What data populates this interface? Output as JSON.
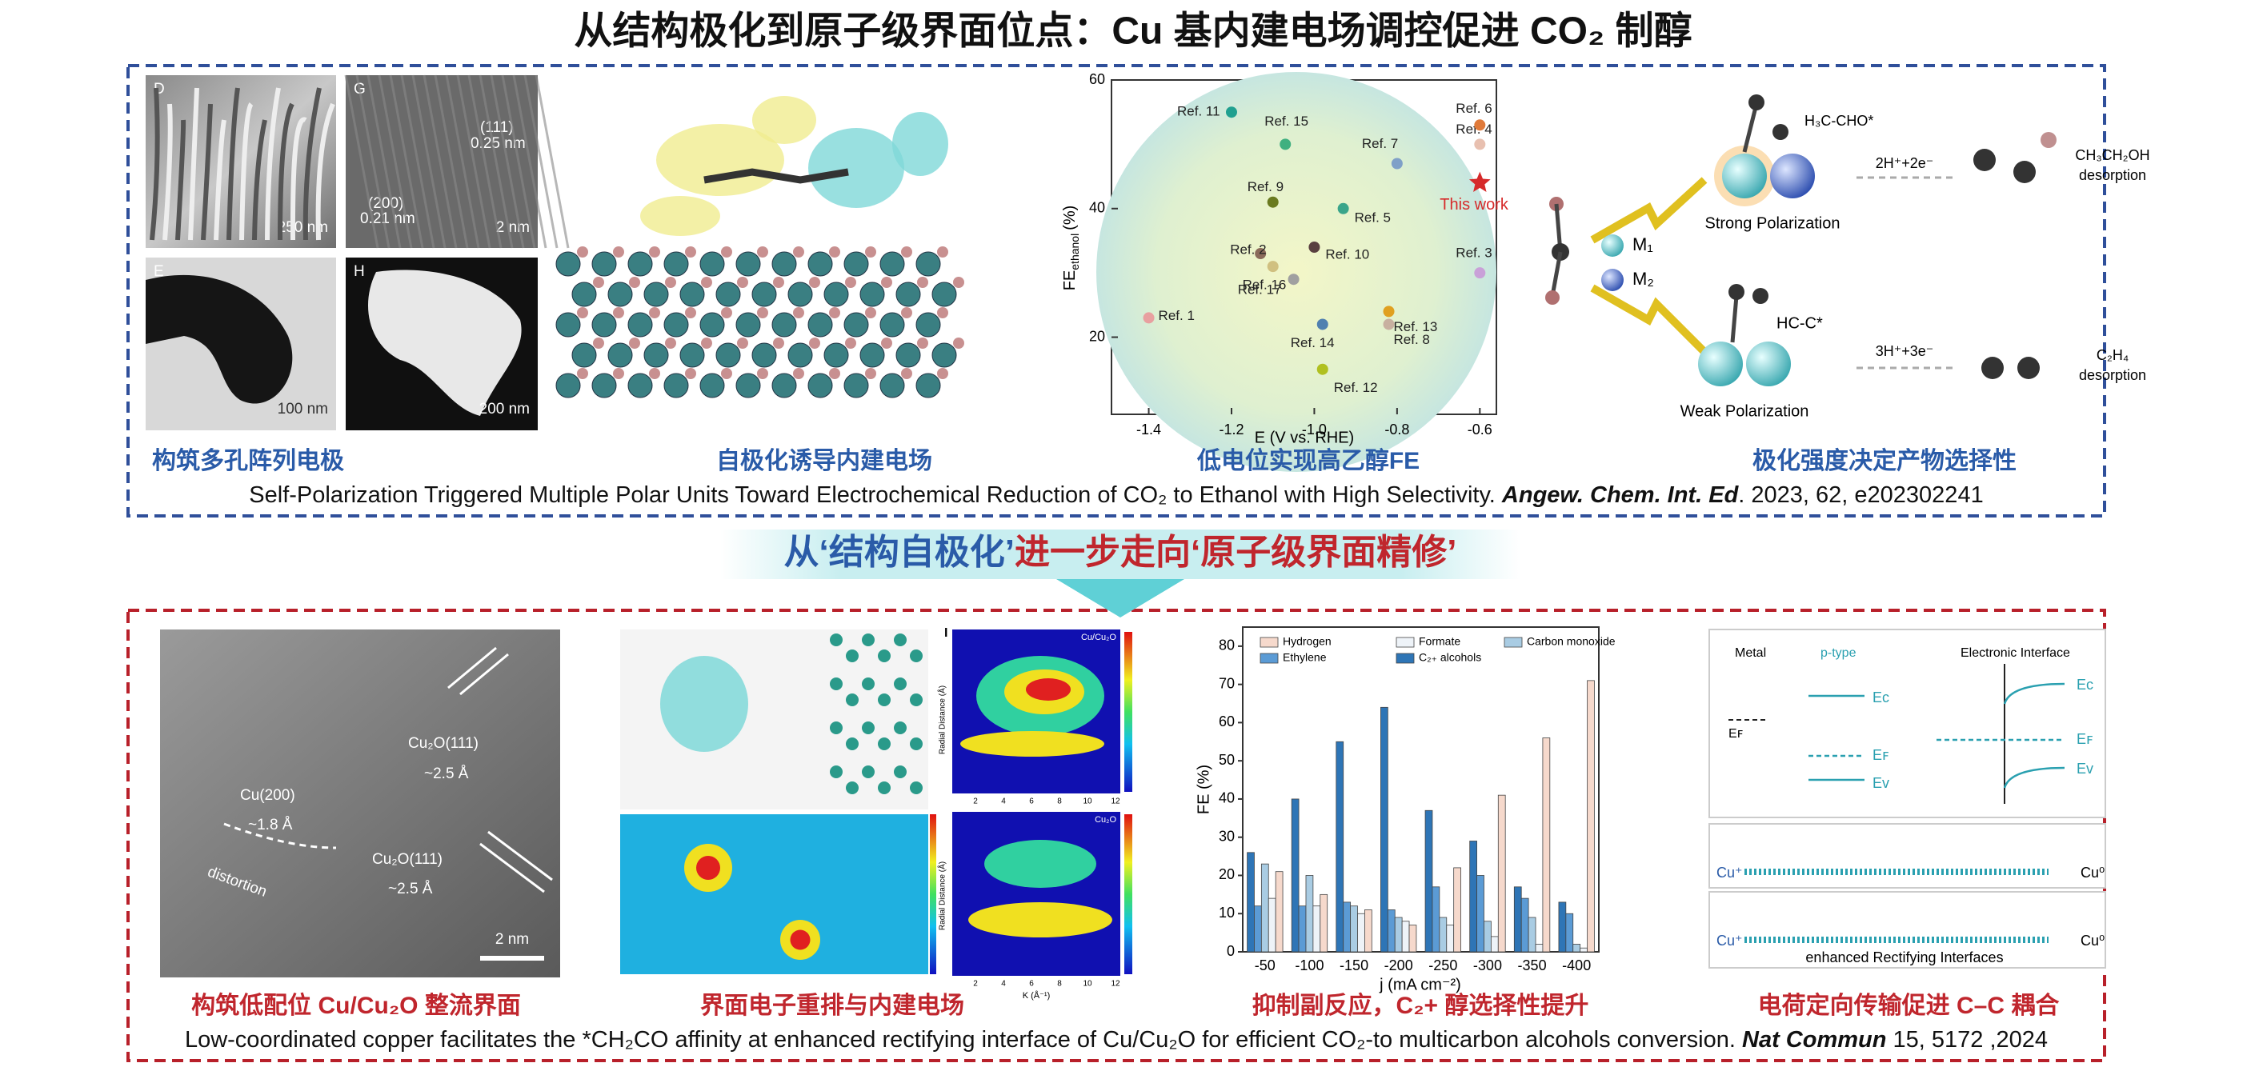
{
  "title": "从结构极化到原子级界面位点：Cu 基内建电场调控促进 CO₂ 制醇",
  "top": {
    "micrographs": {
      "d": "D",
      "d_scale": "250 nm",
      "g": "G",
      "g_plane1": "(111)",
      "g_d1": "0.25 nm",
      "g_plane2": "(200)",
      "g_d2": "0.21 nm",
      "g_scale": "2 nm",
      "e": "E",
      "e_scale": "100 nm",
      "h": "H",
      "h_scale": "200 nm"
    },
    "scatter": {
      "type": "scatter",
      "x_label": "E (V vs. RHE)",
      "y_label": {
        "main": "FE",
        "sub": "ethanol",
        "unit": "(%)"
      },
      "xlim": [
        -1.49,
        -0.56
      ],
      "ylim": [
        8,
        60
      ],
      "xticks": [
        -1.4,
        -1.2,
        {
          "value": -1,
          "label": "-1.0"
        },
        -0.8,
        -0.6
      ],
      "yticks": [
        20,
        40,
        60
      ],
      "points": [
        {
          "name": "Ref. 1",
          "x": -1.4,
          "y": 23,
          "color": "#e8a0a0"
        },
        {
          "name": "Ref. 2",
          "x": -1.13,
          "y": 33,
          "color": "#8a6a5a"
        },
        {
          "name": "Ref. 3",
          "x": -0.6,
          "y": 30,
          "color": "#c9a0d8"
        },
        {
          "name": "Ref. 4",
          "x": -0.6,
          "y": 50,
          "color": "#e8c0b0"
        },
        {
          "name": "Ref. 5",
          "x": -0.93,
          "y": 40,
          "color": "#3aa58a"
        },
        {
          "name": "Ref. 6",
          "x": -0.6,
          "y": 53,
          "color": "#e07a3a"
        },
        {
          "name": "Ref. 7",
          "x": -0.8,
          "y": 47,
          "color": "#7fa0c8"
        },
        {
          "name": "Ref. 8",
          "x": -0.82,
          "y": 22,
          "color": "#c8b0a0"
        },
        {
          "name": "Ref. 9",
          "x": -1.1,
          "y": 41,
          "color": "#6a7a20"
        },
        {
          "name": "Ref. 10",
          "x": -1.0,
          "y": 34,
          "color": "#5a4040"
        },
        {
          "name": "Ref. 11",
          "x": -1.2,
          "y": 55,
          "color": "#20a090"
        },
        {
          "name": "Ref. 12",
          "x": -0.98,
          "y": 15,
          "color": "#b0c020"
        },
        {
          "name": "Ref. 13",
          "x": -0.82,
          "y": 24,
          "color": "#e0a020"
        },
        {
          "name": "Ref. 14",
          "x": -0.98,
          "y": 22,
          "color": "#5080b0"
        },
        {
          "name": "Ref. 15",
          "x": -1.07,
          "y": 50,
          "color": "#40b080"
        },
        {
          "name": "Ref. 16",
          "x": -1.05,
          "y": 29,
          "color": "#a0a0a0"
        },
        {
          "name": "Ref. 17",
          "x": -1.1,
          "y": 31,
          "color": "#d0c080"
        },
        {
          "name": "This work",
          "x": -0.6,
          "y": 44,
          "color": "#d62a2a"
        }
      ]
    },
    "scheme": {
      "strong_inter": "H₃C-CHO*",
      "strong_step": "2H⁺+2e⁻",
      "strong_product": [
        "CH₃CH₂OH",
        "desorption"
      ],
      "strong": "Strong Polarization",
      "m1": "M₁",
      "m2": "M₂",
      "weak_inter": "HC-C*",
      "weak_step": "3H⁺+3e⁻",
      "weak_product": [
        "C₂H₄",
        "desorption"
      ],
      "weak": "Weak Polarization"
    },
    "captions": [
      "构筑多孔阵列电极",
      "自极化诱导内建电场",
      "低电位实现高乙醇FE",
      "极化强度决定产物选择性"
    ],
    "citation": {
      "text": "Self-Polarization Triggered Multiple Polar Units Toward Electrochemical Reduction of CO₂ to Ethanol with High Selectivity. ",
      "journal": "Angew. Chem. Int. Ed",
      "details": ". 2023, 62, e202302241"
    }
  },
  "banner": {
    "part1": "从‘结构自极化’",
    "part2": "进一步走向‘原子级界面精修’"
  },
  "bottom": {
    "tem": {
      "plane1": "Cu₂O(111)",
      "d1": "~2.5 Å",
      "plane2": "Cu(200)",
      "d2": "~1.8 Å",
      "distortion": "distortion",
      "plane3": "Cu₂O(111)",
      "d3": "~2.5 Å",
      "scale": "2 nm"
    },
    "maps": {
      "panel": "I",
      "map1": "Cu/Cu₂O",
      "map2": "Cu₂O",
      "y_label": "Radial Distance (Å)",
      "x_label": "K (Å⁻¹)",
      "xticks": [
        2,
        4,
        6,
        8,
        10,
        12
      ]
    },
    "bars": {
      "type": "bar",
      "y_label": "FE (%)",
      "x_label": "j (mA cm⁻²)",
      "categories": [
        "-50",
        "-100",
        "-150",
        "-200",
        "-250",
        "-300",
        "-350",
        "-400"
      ],
      "ylim": [
        0,
        85
      ],
      "yticks": [
        0,
        10,
        20,
        30,
        40,
        50,
        60,
        70,
        80
      ],
      "series": [
        {
          "name": "Hydrogen",
          "color": "#f6d9cc",
          "values": [
            21,
            15,
            11,
            7,
            22,
            41,
            56,
            71
          ]
        },
        {
          "name": "Formate",
          "color": "#eef3f8",
          "values": [
            14,
            12,
            10,
            8,
            7,
            4,
            2,
            1
          ]
        },
        {
          "name": "Carbon monoxide",
          "color": "#a9cce3",
          "values": [
            23,
            20,
            12,
            9,
            9,
            8,
            9,
            2
          ]
        },
        {
          "name": "Ethylene",
          "color": "#5b9bd5",
          "values": [
            12,
            12,
            13,
            11,
            17,
            20,
            14,
            10
          ]
        },
        {
          "name": "C₂₊ alcohols",
          "color": "#2e75b6",
          "values": [
            26,
            40,
            55,
            64,
            37,
            29,
            17,
            13
          ]
        }
      ]
    },
    "band": {
      "metal": "Metal",
      "ptype": "p-type",
      "interface": "Electronic Interface",
      "ef": "Eꜰ",
      "ec": "Eᴄ",
      "efp": "Eꜰ",
      "ev": "Eᴠ",
      "ec2": "Eᴄ",
      "ef2": "Eꜰ",
      "ev2": "Eᴠ",
      "cup1": "Cu⁺",
      "cu01": "Cu⁰",
      "cup2": "Cu⁺",
      "cu02": "Cu⁰",
      "enhanced": "enhanced Rectifying Interfaces"
    },
    "captions": [
      "构筑低配位 Cu/Cu₂O 整流界面",
      "界面电子重排与内建电场",
      "抑制副反应，C₂+ 醇选择性提升",
      "电荷定向传输促进 C–C 耦合"
    ],
    "citation": {
      "text": "Low-coordinated copper facilitates the *CH₂CO affinity at enhanced rectifying interface of Cu/Cu₂O for efficient CO₂-to multicarbon alcohols conversion. ",
      "journal": "Nat Commun",
      "details": " 15, 5172 ,2024"
    }
  }
}
